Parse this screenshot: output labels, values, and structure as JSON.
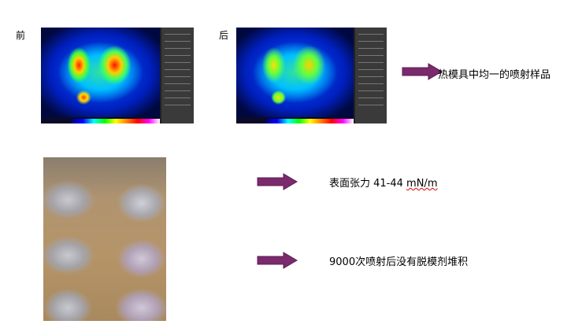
{
  "labels": {
    "before": "前",
    "after": "后"
  },
  "bullets": [
    {
      "text": "热模具中均一的喷射样品"
    },
    {
      "text_main": "表面张力 41-44 ",
      "text_unit": "mN/m"
    },
    {
      "text": "9000次喷射后没有脱模剂堆积"
    }
  ],
  "colors": {
    "arrow": "#7b2a6e",
    "arrow_border": "#5a1d50"
  },
  "icons": {
    "arrow": "right-arrow-icon"
  }
}
